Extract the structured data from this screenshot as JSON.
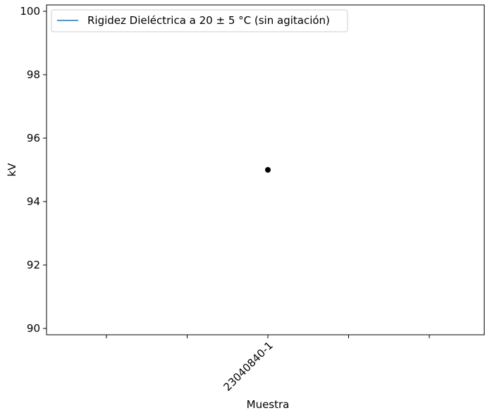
{
  "chart_data": {
    "type": "scatter",
    "xlabel": "Muestra",
    "ylabel": "kV",
    "x_categories": [
      "23040840-1"
    ],
    "ylim": [
      89.8,
      100.2
    ],
    "yticks": [
      90,
      92,
      94,
      96,
      98,
      100
    ],
    "grid": false,
    "legend": {
      "placement": "top-left",
      "entries": [
        "Rigidez Dieléctrica a 20 ± 5 °C (sin agitación)"
      ]
    },
    "series": [
      {
        "name": "Rigidez Dieléctrica a 20 ± 5 °C (sin agitación)",
        "x": [
          "23040840-1"
        ],
        "y": [
          95
        ],
        "color": "#1f77b4",
        "marker_color": "#000000"
      }
    ]
  }
}
